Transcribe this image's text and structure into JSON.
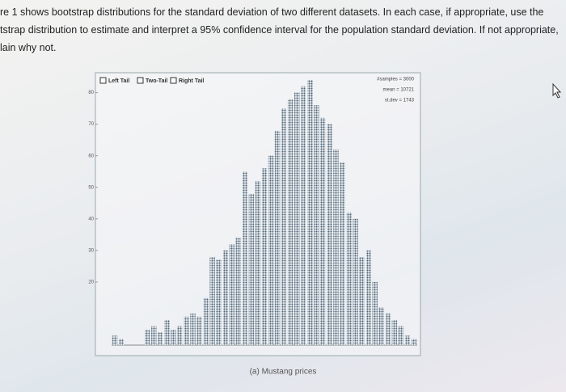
{
  "problem": {
    "lines": [
      "re 1 shows bootstrap distributions for the standard deviation of two different datasets. In each case, if appropriate, use the",
      "tstrap distribution to estimate and interpret a 95% confidence interval for the population standard deviation. If not appropriate,",
      "lain why not."
    ]
  },
  "chart_data": {
    "type": "dotplot",
    "controls": [
      "Left Tail",
      "Two-Tail",
      "Right Tail"
    ],
    "stats": [
      "#samples = 3000",
      "mean = 10721",
      "st.dev = 1743"
    ],
    "caption": "(a) Mustang prices",
    "values": [
      3,
      2,
      0,
      0,
      0,
      5,
      6,
      4,
      8,
      5,
      6,
      9,
      10,
      9,
      15,
      28,
      27,
      30,
      32,
      34,
      55,
      48,
      52,
      56,
      60,
      68,
      75,
      78,
      80,
      82,
      84,
      76,
      72,
      70,
      62,
      58,
      42,
      40,
      28,
      30,
      20,
      12,
      10,
      8,
      6,
      3,
      2
    ],
    "ylim": [
      0,
      84
    ],
    "yticks": [
      20,
      30,
      40,
      50,
      60,
      70,
      80
    ]
  }
}
